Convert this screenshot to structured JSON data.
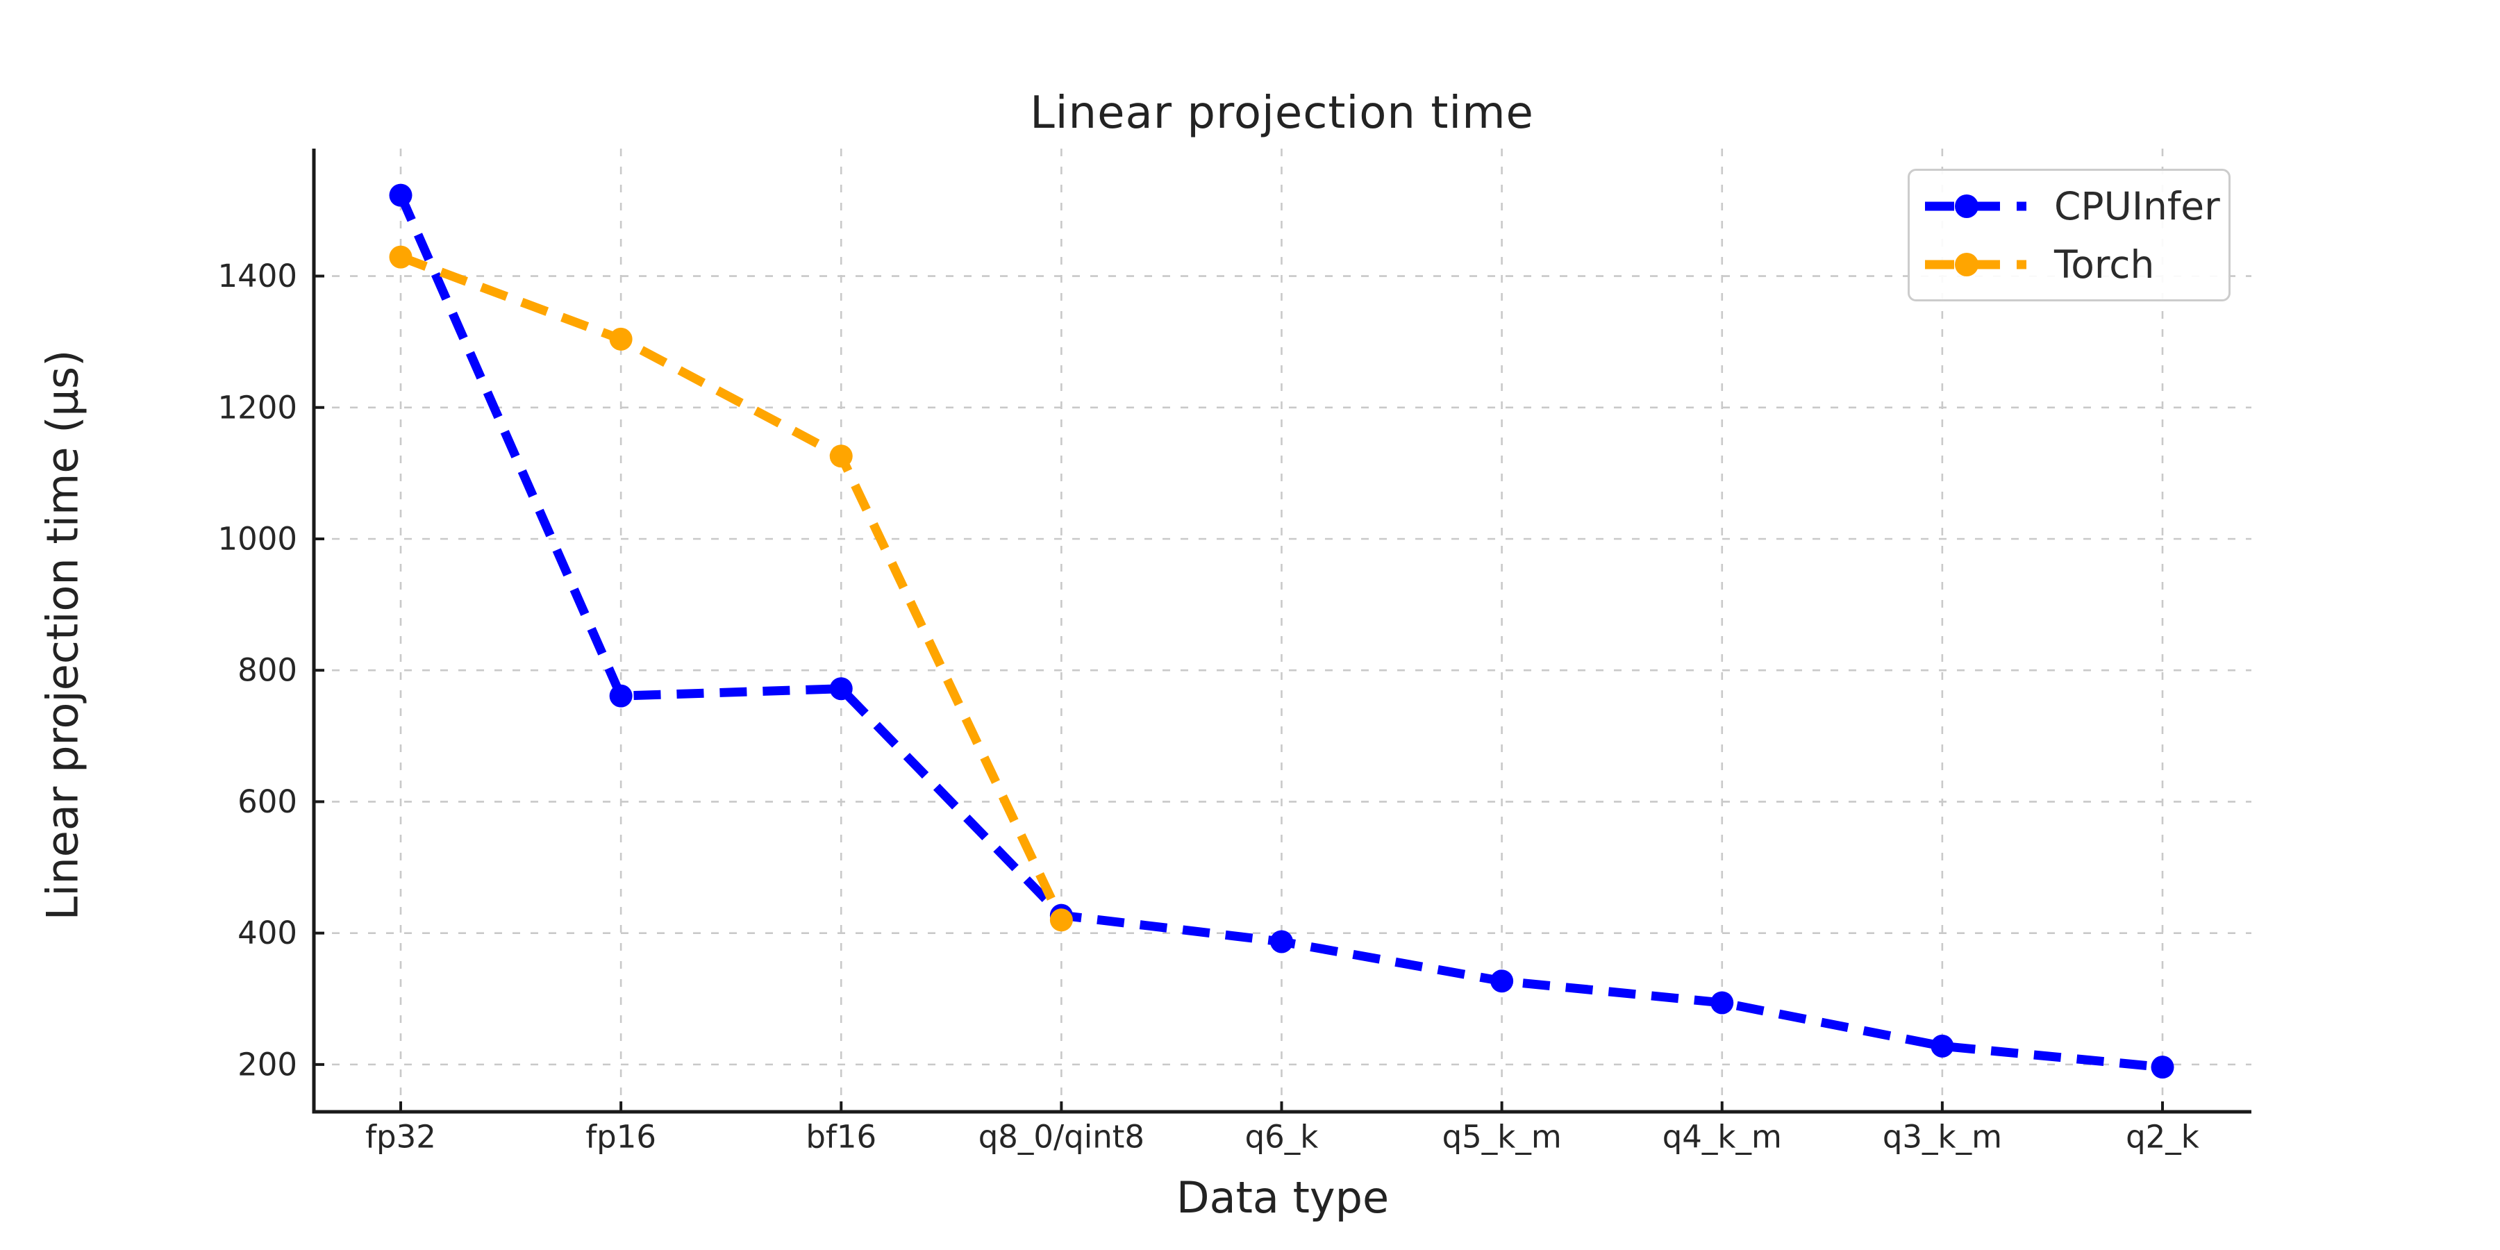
{
  "window": {
    "background": "#ffffff"
  },
  "chart_data": {
    "type": "line",
    "title": "Linear projection time",
    "xlabel": "Data type",
    "ylabel": "Linear projection time (µs)",
    "categories": [
      "fp32",
      "fp16",
      "bf16",
      "q8_0/qint8",
      "q6_k",
      "q5_k_m",
      "q4_k_m",
      "q3_k_m",
      "q2_k"
    ],
    "series": [
      {
        "name": "CPUInfer",
        "color": "#0000ff",
        "line_style": "dashed",
        "marker": "circle",
        "values": [
          1523,
          761,
          772,
          427,
          387,
          327,
          294,
          228,
          196
        ]
      },
      {
        "name": "Torch",
        "color": "#ffa500",
        "line_style": "dashed",
        "marker": "circle",
        "values": [
          1429,
          1304,
          1126,
          420,
          null,
          null,
          null,
          null,
          null
        ]
      }
    ],
    "y_ticks": [
      200,
      400,
      600,
      800,
      1000,
      1200,
      1400
    ],
    "ylim": [
      128,
      1594
    ],
    "grid": true,
    "grid_color": "#c9c9c9",
    "spine_color": "#1a1a1a",
    "legend_position": "upper right"
  }
}
